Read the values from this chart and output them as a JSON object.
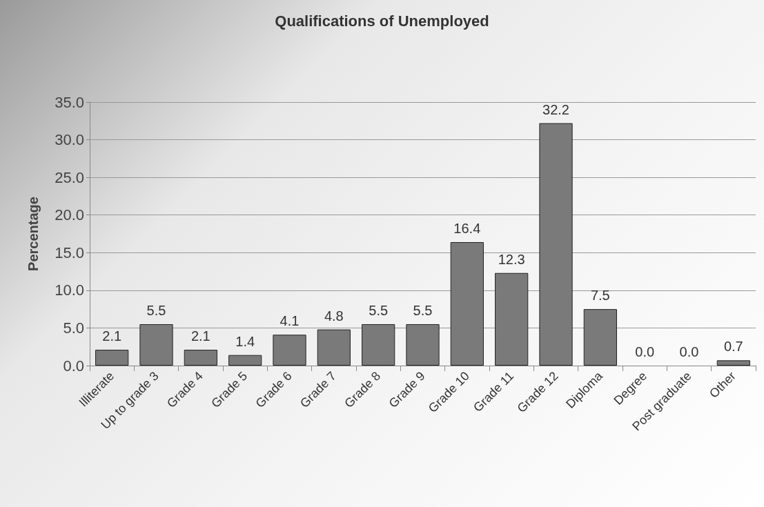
{
  "chart_data": {
    "type": "bar",
    "title": "Qualifications of Unemployed",
    "ylabel": "Percentage",
    "categories": [
      "Illiterate",
      "Up to grade 3",
      "Grade 4",
      "Grade 5",
      "Grade 6",
      "Grade 7",
      "Grade 8",
      "Grade 9",
      "Grade 10",
      "Grade 11",
      "Grade 12",
      "Diploma",
      "Degree",
      "Post graduate",
      "Other"
    ],
    "values": [
      2.1,
      5.5,
      2.1,
      1.4,
      4.1,
      4.8,
      5.5,
      5.5,
      16.4,
      12.3,
      32.2,
      7.5,
      0.0,
      0.0,
      0.7
    ],
    "value_labels": [
      "2.1",
      "5.5",
      "2.1",
      "1.4",
      "4.1",
      "4.8",
      "5.5",
      "5.5",
      "16.4",
      "12.3",
      "32.2",
      "7.5",
      "0.0",
      "0.0",
      "0.7"
    ],
    "color": "#7a7a7a",
    "ylim": [
      0,
      35
    ],
    "yticks": [
      {
        "value": 0,
        "label": "0.0"
      },
      {
        "value": 5,
        "label": "5.0"
      },
      {
        "value": 10,
        "label": "10.0"
      },
      {
        "value": 15,
        "label": "15.0"
      },
      {
        "value": 20,
        "label": "20.0"
      },
      {
        "value": 25,
        "label": "25.0"
      },
      {
        "value": 30,
        "label": "30.0"
      },
      {
        "value": 35,
        "label": "35.0"
      }
    ],
    "grid": "y"
  }
}
